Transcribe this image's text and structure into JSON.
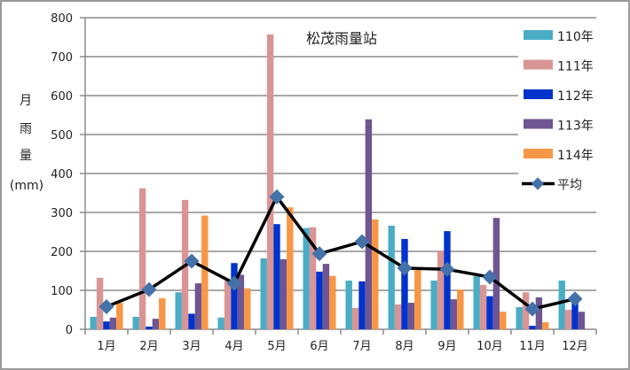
{
  "chart_data": {
    "type": "bar",
    "title": "松茂雨量站",
    "xlabel": "",
    "ylabel": "月雨量(mm)",
    "ylabel_lines": [
      "月",
      "雨",
      "量",
      "(mm)"
    ],
    "ylim": [
      0,
      800
    ],
    "yticks": [
      0,
      100,
      200,
      300,
      400,
      500,
      600,
      700,
      800
    ],
    "grid": true,
    "legend_position": "right",
    "categories": [
      "1月",
      "2月",
      "3月",
      "4月",
      "5月",
      "6月",
      "7月",
      "8月",
      "9月",
      "10月",
      "11月",
      "12月"
    ],
    "series": [
      {
        "name": "110年",
        "type": "bar",
        "color": "#4BACC6",
        "values": [
          32,
          32,
          95,
          30,
          182,
          260,
          125,
          266,
          125,
          136,
          57,
          125
        ]
      },
      {
        "name": "111年",
        "type": "bar",
        "color": "#D99594",
        "values": [
          132,
          362,
          332,
          125,
          757,
          262,
          55,
          64,
          202,
          114,
          95,
          50
        ]
      },
      {
        "name": "112年",
        "type": "bar",
        "color": "#0033CC",
        "values": [
          20,
          7,
          40,
          170,
          270,
          148,
          123,
          232,
          252,
          85,
          9,
          77
        ]
      },
      {
        "name": "113年",
        "type": "bar",
        "color": "#6F5592",
        "values": [
          30,
          27,
          118,
          140,
          180,
          168,
          539,
          68,
          77,
          286,
          82,
          45
        ]
      },
      {
        "name": "114年",
        "type": "bar",
        "color": "#F79646",
        "values": [
          68,
          80,
          292,
          105,
          313,
          137,
          282,
          152,
          102,
          45,
          18,
          null
        ]
      },
      {
        "name": "平均",
        "type": "line",
        "color": "#000000",
        "marker_color": "#4472A8",
        "values": [
          58,
          102,
          175,
          118,
          340,
          194,
          225,
          157,
          154,
          134,
          52,
          78
        ]
      }
    ]
  }
}
